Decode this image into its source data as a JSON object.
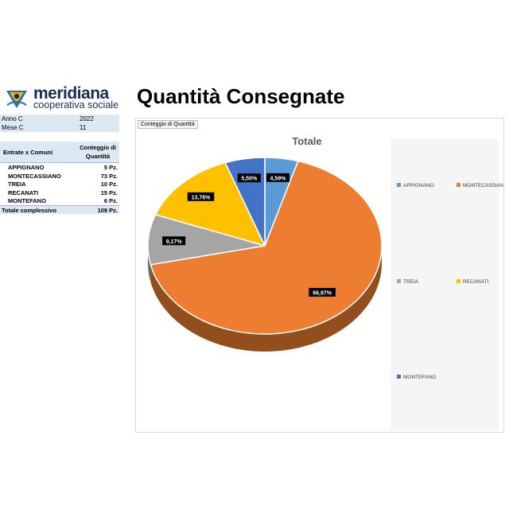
{
  "logo": {
    "name": "meridiana",
    "subtitle": "cooperativa sociale"
  },
  "title": "Quantità Consegnate",
  "filters": [
    {
      "key": "Anno C",
      "value": "2022"
    },
    {
      "key": "Mese C",
      "value": "11"
    }
  ],
  "pivot": {
    "col1": "Entrate x Comuni",
    "col2_line1": "Conteggio di",
    "col2_line2": "Quantità",
    "rows": [
      {
        "name": "APPIGNANO",
        "qty": "5 Pz."
      },
      {
        "name": "MONTECASSIANO",
        "qty": "73 Pz."
      },
      {
        "name": "TREIA",
        "qty": "10 Pz."
      },
      {
        "name": "RECANATI",
        "qty": "15 Pz."
      },
      {
        "name": "MONTEFANO",
        "qty": "6 Pz."
      }
    ],
    "total_label": "Totale complessivo",
    "total_qty": "109 Pz."
  },
  "chart_field_button": "Conteggio di Quantità",
  "chart_data": {
    "type": "pie",
    "title": "Totale",
    "categories": [
      "APPIGNANO",
      "MONTECASSIANO",
      "TREIA",
      "RECANATI",
      "MONTEFANO"
    ],
    "values": [
      5,
      73,
      10,
      15,
      6
    ],
    "data_labels": [
      "4,59%",
      "66,97%",
      "9,17%",
      "13,76%",
      "5,50%"
    ],
    "colors": [
      "#5b9bd5",
      "#ed7d31",
      "#a5a5a5",
      "#ffc000",
      "#4472c4"
    ],
    "legend_position": "right",
    "style": "3d"
  }
}
